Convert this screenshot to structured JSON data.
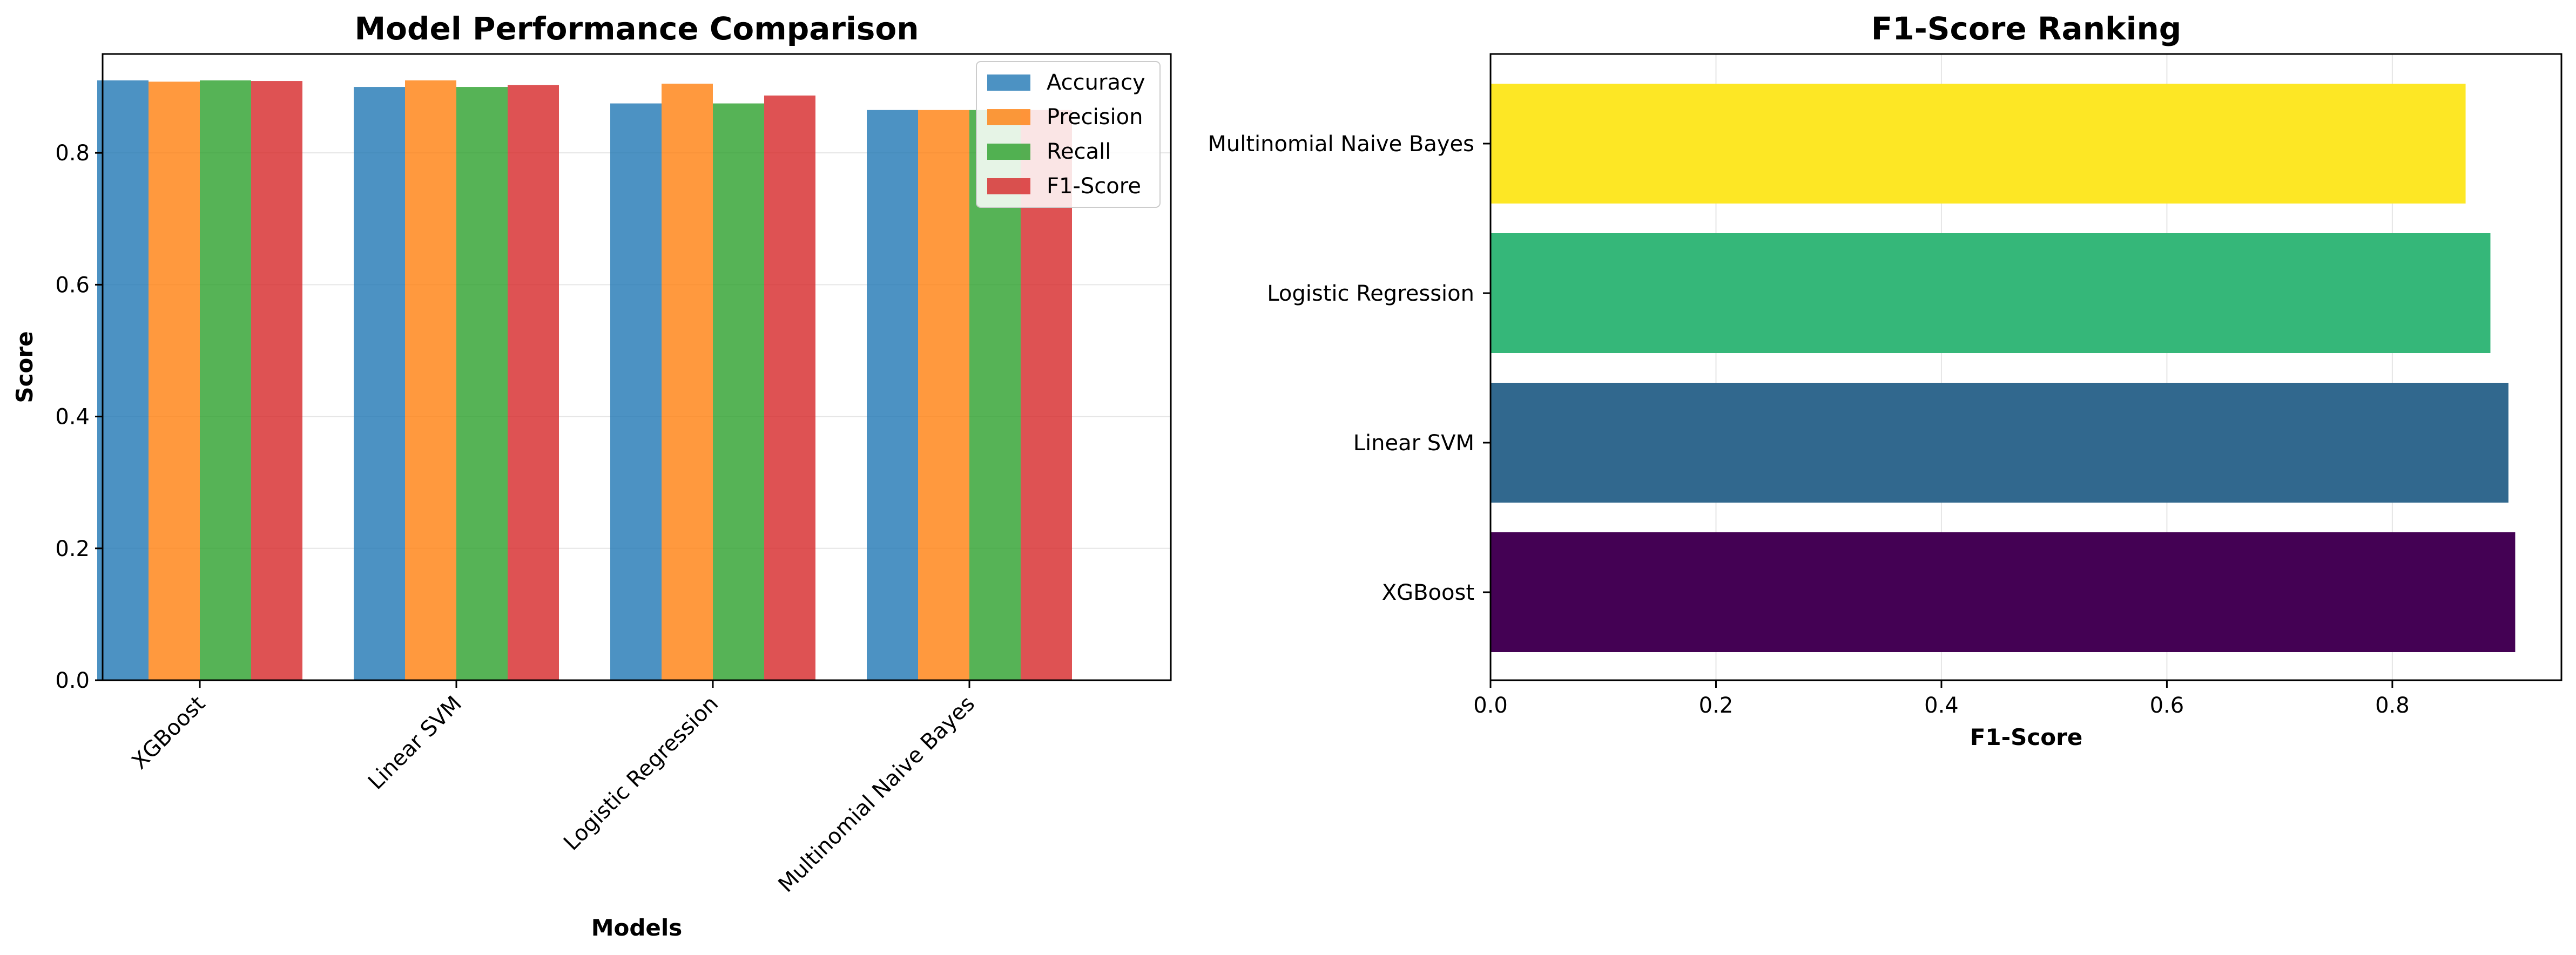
{
  "chart_data": [
    {
      "type": "bar",
      "title": "Model Performance Comparison",
      "xlabel": "Models",
      "ylabel": "Score",
      "categories": [
        "XGBoost",
        "Linear SVM",
        "Logistic Regression",
        "Multinomial Naive Bayes"
      ],
      "series": [
        {
          "name": "Accuracy",
          "color": "#1f77b4",
          "values": [
            0.91,
            0.9,
            0.875,
            0.865
          ]
        },
        {
          "name": "Precision",
          "color": "#ff7f0e",
          "values": [
            0.908,
            0.91,
            0.905,
            0.865
          ]
        },
        {
          "name": "Recall",
          "color": "#2ca02c",
          "values": [
            0.91,
            0.9,
            0.875,
            0.865
          ]
        },
        {
          "name": "F1-Score",
          "color": "#d62728",
          "values": [
            0.909,
            0.903,
            0.887,
            0.865
          ]
        }
      ],
      "ylim": [
        0,
        0.95
      ],
      "yticks": [
        "0.0",
        "0.2",
        "0.4",
        "0.6",
        "0.8"
      ],
      "grid": "y",
      "legend": "top-right"
    },
    {
      "type": "bar",
      "orientation": "horizontal",
      "title": "F1-Score Ranking",
      "xlabel": "F1-Score",
      "ylabel": "",
      "categories": [
        "XGBoost",
        "Linear SVM",
        "Logistic Regression",
        "Multinomial Naive Bayes"
      ],
      "values": [
        0.909,
        0.903,
        0.887,
        0.865
      ],
      "colors": [
        "#440154",
        "#31688e",
        "#35b779",
        "#fde725"
      ],
      "xlim": [
        0,
        0.95
      ],
      "xticks": [
        "0.0",
        "0.2",
        "0.4",
        "0.6",
        "0.8"
      ],
      "grid": "x"
    }
  ]
}
